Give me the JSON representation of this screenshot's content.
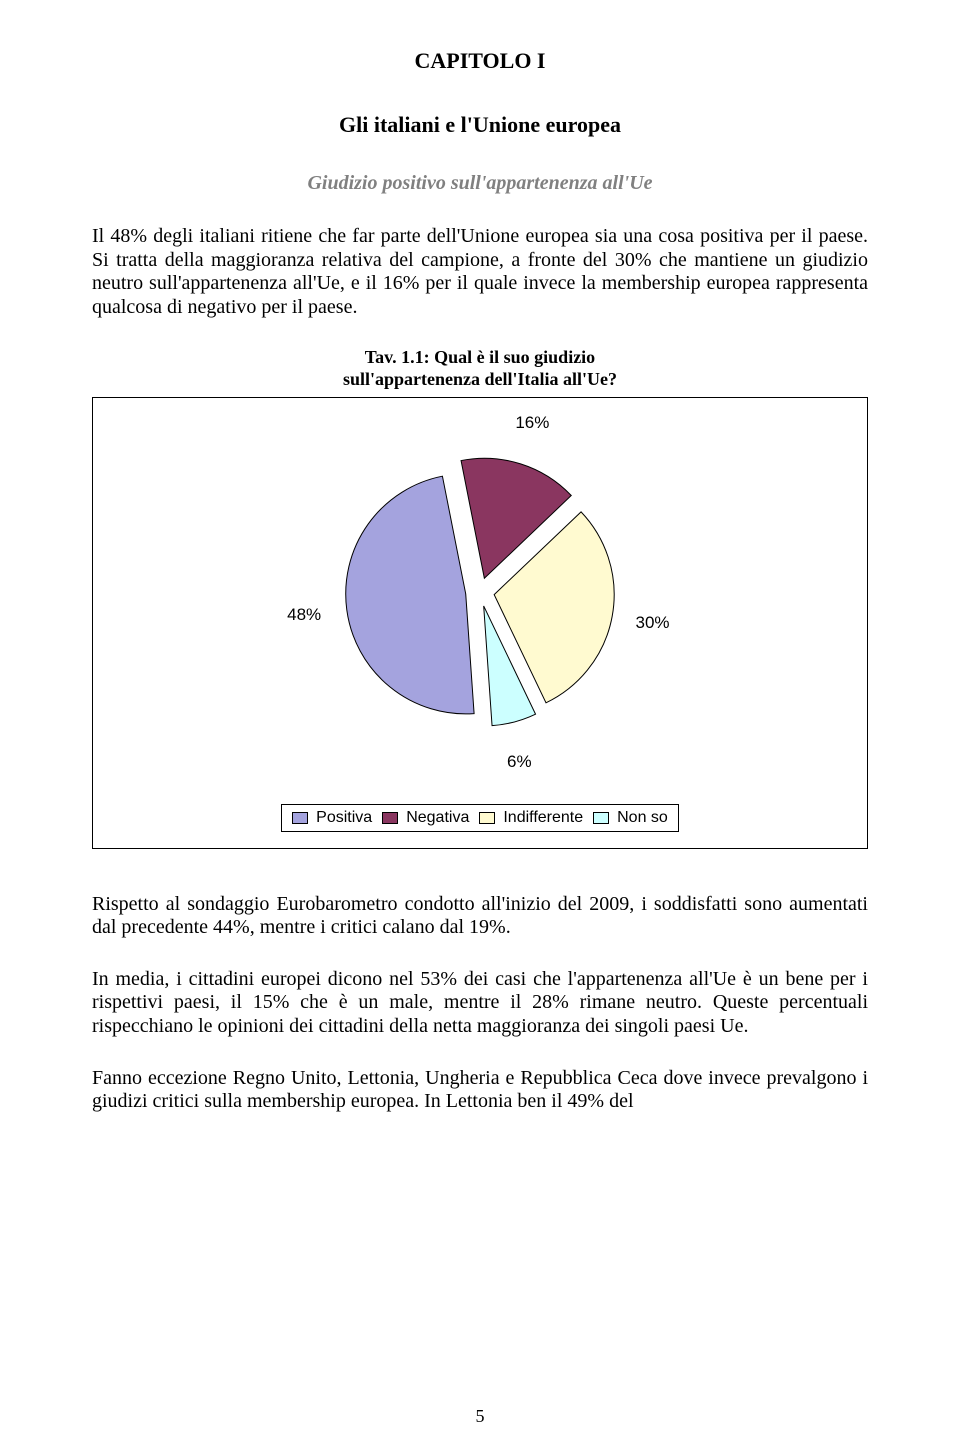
{
  "chapter": "CAPITOLO I",
  "title": "Gli italiani e l'Unione europea",
  "subtitle": "Giudizio positivo sull'appartenenza all'Ue",
  "subtitle_color": "#808080",
  "para1": "Il 48% degli italiani ritiene che far parte dell'Unione europea sia una cosa positiva per il paese. Si tratta della maggioranza relativa del campione, a fronte del 30% che mantiene un giudizio neutro sull'appartenenza all'Ue, e il 16% per il quale invece la membership europea rappresenta qualcosa di negativo per il paese.",
  "chart": {
    "caption_line1": "Tav. 1.1: Qual è il suo giudizio",
    "caption_line2": "sull'appartenenza dell'Italia all'Ue?",
    "type": "pie",
    "explode": 0.06,
    "start_angle_deg": 86,
    "direction": "clockwise",
    "background_color": "#ffffff",
    "border_color": "#000000",
    "slices": [
      {
        "name": "Positiva",
        "value": 48,
        "label": "48%",
        "fill": "#a4a3de",
        "stroke": "#000000"
      },
      {
        "name": "Negativa",
        "value": 16,
        "label": "16%",
        "fill": "#8a3660",
        "stroke": "#000000"
      },
      {
        "name": "Indifferente",
        "value": 30,
        "label": "30%",
        "fill": "#fffad0",
        "stroke": "#000000"
      },
      {
        "name": "Non so",
        "value": 6,
        "label": "6%",
        "fill": "#ccffff",
        "stroke": "#000000"
      }
    ],
    "label_font_family": "Arial",
    "label_font_size": 17,
    "legend": {
      "items": [
        "Positiva",
        "Negativa",
        "Indifferente",
        "Non so"
      ],
      "swatch_colors": [
        "#a4a3de",
        "#8a3660",
        "#fffad0",
        "#ccffff"
      ],
      "border_color": "#000000",
      "font_size": 16
    }
  },
  "para2": "Rispetto al sondaggio Eurobarometro condotto all'inizio del 2009, i soddisfatti sono aumentati dal precedente 44%, mentre i critici calano dal 19%.",
  "para3": "In media, i cittadini europei dicono nel 53% dei casi che l'appartenenza all'Ue è un bene per i rispettivi paesi, il 15% che è un male, mentre il 28% rimane neutro. Queste percentuali rispecchiano le opinioni dei cittadini della netta maggioranza dei singoli paesi Ue.",
  "para4": "Fanno eccezione Regno Unito, Lettonia, Ungheria e Repubblica Ceca dove invece prevalgono i giudizi critici sulla membership europea. In Lettonia ben il 49% del",
  "page_number": "5"
}
